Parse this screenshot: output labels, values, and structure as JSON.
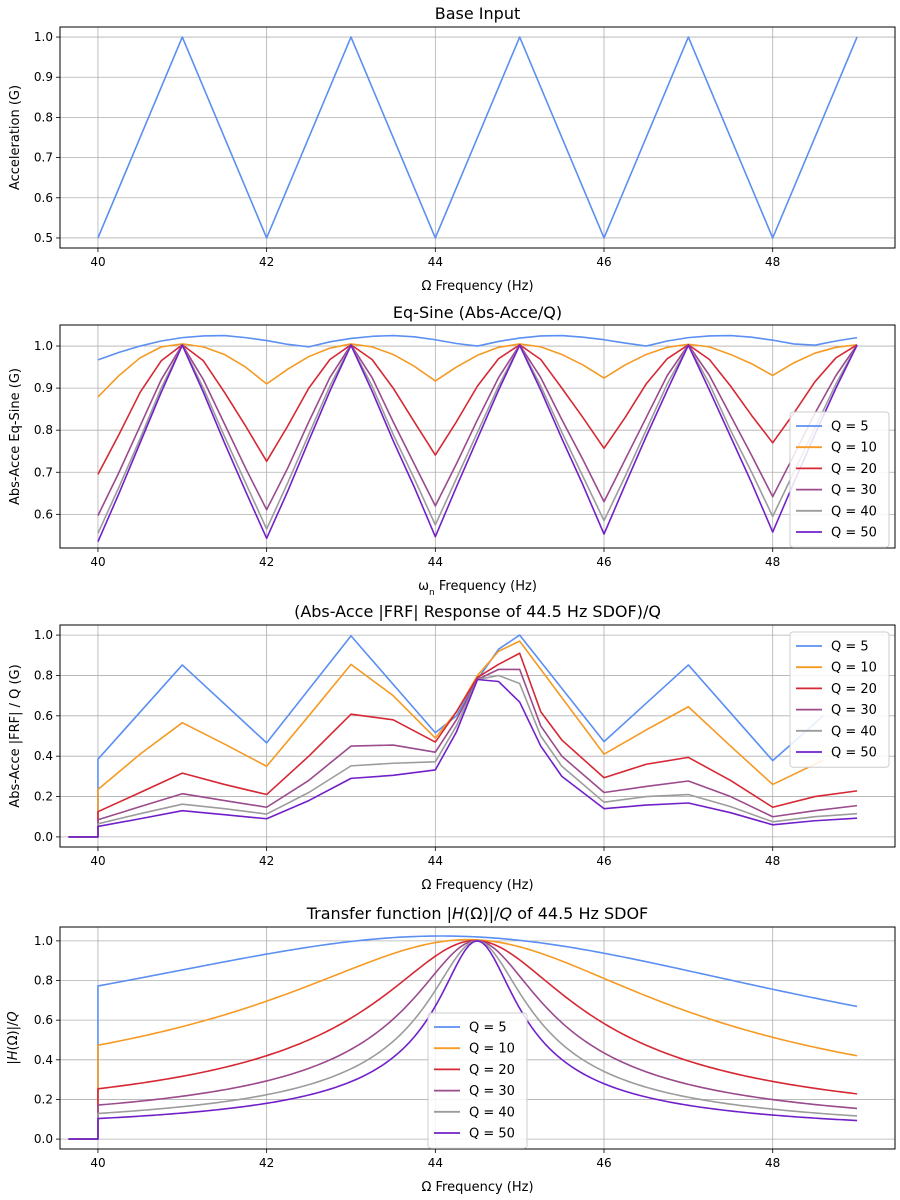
{
  "colors": [
    "#5b8ff2",
    "#f59a23",
    "#d62834",
    "#9b4a8c",
    "#9c9c9c",
    "#7120c9"
  ],
  "chart_data": [
    {
      "type": "line",
      "title": "Base Input",
      "xlabel": "Ω Frequency (Hz)",
      "ylabel": "Acceleration (G)",
      "xlim": [
        39.55,
        49.45
      ],
      "ylim": [
        0.475,
        1.025
      ],
      "xticks": [
        "40",
        "42",
        "44",
        "46",
        "48"
      ],
      "yticks": [
        "0.5",
        "0.6",
        "0.7",
        "0.8",
        "0.9",
        "1.0"
      ],
      "grid": true,
      "legend": null,
      "series": [
        {
          "name": "",
          "x": [
            40,
            41,
            42,
            43,
            44,
            45,
            46,
            47,
            48,
            49
          ],
          "y": [
            0.5,
            1.0,
            0.5,
            1.0,
            0.5,
            1.0,
            0.5,
            1.0,
            0.5,
            1.0
          ]
        }
      ]
    },
    {
      "type": "line",
      "title": "Eq-Sine (Abs-Acce/Q)",
      "xlabel": "ωn Frequency (Hz)",
      "ylabel": "Abs-Acce Eq-Sine (G)",
      "xlim": [
        39.55,
        49.45
      ],
      "ylim": [
        0.52,
        1.05
      ],
      "xticks": [
        "40",
        "42",
        "44",
        "46",
        "48"
      ],
      "yticks": [
        "0.6",
        "0.7",
        "0.8",
        "0.9",
        "1.0"
      ],
      "grid": true,
      "legend": "lower-right",
      "series": [
        {
          "name": "Q = 5",
          "x": [
            40,
            40.25,
            40.5,
            40.75,
            41,
            41.25,
            41.5,
            41.75,
            42,
            42.25,
            42.5,
            42.75,
            43,
            43.25,
            43.5,
            43.75,
            44,
            44.25,
            44.5,
            44.75,
            45,
            45.25,
            45.5,
            45.75,
            46,
            46.25,
            46.5,
            46.75,
            47,
            47.25,
            47.5,
            47.75,
            48,
            48.25,
            48.5,
            48.75,
            49
          ],
          "y": [
            0.967,
            0.985,
            1.0,
            1.012,
            1.02,
            1.024,
            1.025,
            1.02,
            1.013,
            1.004,
            0.998,
            1.01,
            1.018,
            1.023,
            1.025,
            1.022,
            1.015,
            1.006,
            1.0,
            1.011,
            1.019,
            1.024,
            1.025,
            1.021,
            1.015,
            1.007,
            1.0,
            1.012,
            1.02,
            1.024,
            1.025,
            1.021,
            1.014,
            1.005,
            1.002,
            1.012,
            1.02
          ]
        },
        {
          "name": "Q = 10",
          "x": [
            40,
            40.25,
            40.5,
            40.75,
            41,
            41.25,
            41.5,
            41.75,
            42,
            42.25,
            42.5,
            42.75,
            43,
            43.25,
            43.5,
            43.75,
            44,
            44.25,
            44.5,
            44.75,
            45,
            45.25,
            45.5,
            45.75,
            46,
            46.25,
            46.5,
            46.75,
            47,
            47.25,
            47.5,
            47.75,
            48,
            48.25,
            48.5,
            48.75,
            49
          ],
          "y": [
            0.879,
            0.93,
            0.972,
            0.998,
            1.005,
            0.998,
            0.98,
            0.95,
            0.91,
            0.945,
            0.975,
            0.995,
            1.005,
            0.998,
            0.98,
            0.952,
            0.917,
            0.95,
            0.978,
            0.997,
            1.005,
            0.998,
            0.98,
            0.955,
            0.924,
            0.955,
            0.98,
            0.997,
            1.004,
            0.998,
            0.98,
            0.958,
            0.93,
            0.96,
            0.983,
            0.997,
            1.003
          ]
        },
        {
          "name": "Q = 20",
          "x": [
            40,
            40.25,
            40.5,
            40.75,
            41,
            41.25,
            41.5,
            41.75,
            42,
            42.25,
            42.5,
            42.75,
            43,
            43.25,
            43.5,
            43.75,
            44,
            44.25,
            44.5,
            44.75,
            45,
            45.25,
            45.5,
            45.75,
            46,
            46.25,
            46.5,
            46.75,
            47,
            47.25,
            47.5,
            47.75,
            48,
            48.25,
            48.5,
            48.75,
            49
          ],
          "y": [
            0.695,
            0.79,
            0.89,
            0.965,
            1.003,
            0.965,
            0.89,
            0.81,
            0.726,
            0.81,
            0.9,
            0.968,
            1.003,
            0.968,
            0.9,
            0.82,
            0.741,
            0.82,
            0.905,
            0.97,
            1.003,
            0.968,
            0.9,
            0.83,
            0.757,
            0.83,
            0.91,
            0.97,
            1.003,
            0.968,
            0.905,
            0.835,
            0.77,
            0.84,
            0.915,
            0.972,
            1.003
          ]
        },
        {
          "name": "Q = 30",
          "x": [
            40,
            40.25,
            40.5,
            40.75,
            41,
            41.25,
            41.5,
            41.75,
            42,
            42.25,
            42.5,
            42.75,
            43,
            43.25,
            43.5,
            43.75,
            44,
            44.25,
            44.5,
            44.75,
            45,
            45.25,
            45.5,
            45.75,
            46,
            46.25,
            46.5,
            46.75,
            47,
            47.25,
            47.5,
            47.75,
            48,
            48.25,
            48.5,
            48.75,
            49
          ],
          "y": [
            0.597,
            0.7,
            0.81,
            0.92,
            1.003,
            0.92,
            0.815,
            0.71,
            0.611,
            0.71,
            0.82,
            0.925,
            1.003,
            0.925,
            0.82,
            0.72,
            0.62,
            0.72,
            0.825,
            0.925,
            1.003,
            0.925,
            0.825,
            0.73,
            0.63,
            0.73,
            0.83,
            0.93,
            1.003,
            0.93,
            0.835,
            0.74,
            0.642,
            0.74,
            0.84,
            0.93,
            1.003
          ]
        },
        {
          "name": "Q = 40",
          "x": [
            40,
            40.25,
            40.5,
            40.75,
            41,
            41.25,
            41.5,
            41.75,
            42,
            42.25,
            42.5,
            42.75,
            43,
            43.25,
            43.5,
            43.75,
            44,
            44.25,
            44.5,
            44.75,
            45,
            45.25,
            45.5,
            45.75,
            46,
            46.25,
            46.5,
            46.75,
            47,
            47.25,
            47.5,
            47.75,
            48,
            48.25,
            48.5,
            48.75,
            49
          ],
          "y": [
            0.555,
            0.665,
            0.78,
            0.9,
            1.002,
            0.9,
            0.785,
            0.675,
            0.565,
            0.675,
            0.79,
            0.905,
            1.002,
            0.905,
            0.79,
            0.685,
            0.575,
            0.685,
            0.795,
            0.905,
            1.002,
            0.905,
            0.795,
            0.69,
            0.585,
            0.69,
            0.8,
            0.91,
            1.002,
            0.91,
            0.8,
            0.7,
            0.595,
            0.7,
            0.805,
            0.91,
            1.002
          ]
        },
        {
          "name": "Q = 50",
          "x": [
            40,
            40.25,
            40.5,
            40.75,
            41,
            41.25,
            41.5,
            41.75,
            42,
            42.25,
            42.5,
            42.75,
            43,
            43.25,
            43.5,
            43.75,
            44,
            44.25,
            44.5,
            44.75,
            45,
            45.25,
            45.5,
            45.75,
            46,
            46.25,
            46.5,
            46.75,
            47,
            47.25,
            47.5,
            47.75,
            48,
            48.25,
            48.5,
            48.75,
            49
          ],
          "y": [
            0.535,
            0.65,
            0.77,
            0.89,
            1.002,
            0.89,
            0.77,
            0.655,
            0.543,
            0.655,
            0.775,
            0.893,
            1.002,
            0.893,
            0.775,
            0.665,
            0.547,
            0.665,
            0.78,
            0.895,
            1.002,
            0.895,
            0.78,
            0.67,
            0.553,
            0.67,
            0.785,
            0.895,
            1.002,
            0.895,
            0.785,
            0.675,
            0.558,
            0.675,
            0.79,
            0.9,
            1.002
          ]
        }
      ]
    },
    {
      "type": "line",
      "title": "(Abs-Acce |FRF| Response of 44.5 Hz SDOF)/Q",
      "xlabel": "Ω Frequency (Hz)",
      "ylabel": "Abs-Acce |FRF| / Q (G)",
      "xlim": [
        39.55,
        49.45
      ],
      "ylim": [
        -0.05,
        1.05
      ],
      "xticks": [
        "40",
        "42",
        "44",
        "46",
        "48"
      ],
      "yticks": [
        "0.0",
        "0.2",
        "0.4",
        "0.6",
        "0.8",
        "1.0"
      ],
      "grid": true,
      "legend": "upper-right",
      "series": [
        {
          "name": "Q = 5",
          "x": [
            39.65,
            40,
            40,
            41,
            42,
            43,
            44,
            44.25,
            44.5,
            44.75,
            45,
            46,
            47,
            48,
            48.6
          ],
          "y": [
            0,
            0,
            0.385,
            0.852,
            0.466,
            0.996,
            0.516,
            0.6,
            0.78,
            0.93,
            1.0,
            0.472,
            0.852,
            0.378,
            0.6
          ]
        },
        {
          "name": "Q = 10",
          "x": [
            39.65,
            40,
            40,
            40.5,
            41,
            41.5,
            42,
            42.5,
            43,
            43.5,
            44,
            44.25,
            44.5,
            44.75,
            45,
            46,
            46.5,
            47,
            47.5,
            48,
            48.6
          ],
          "y": [
            0,
            0,
            0.235,
            0.41,
            0.566,
            0.46,
            0.35,
            0.6,
            0.855,
            0.7,
            0.49,
            0.62,
            0.8,
            0.92,
            0.97,
            0.41,
            0.53,
            0.645,
            0.45,
            0.26,
            0.38
          ]
        },
        {
          "name": "Q = 20",
          "x": [
            39.65,
            40,
            40,
            40.5,
            41,
            41.5,
            42,
            42.5,
            43,
            43.5,
            44,
            44.25,
            44.5,
            44.75,
            45,
            45.25,
            45.5,
            46,
            46.5,
            47,
            47.5,
            48,
            48.5,
            49
          ],
          "y": [
            0,
            0,
            0.125,
            0.22,
            0.316,
            0.26,
            0.21,
            0.4,
            0.608,
            0.58,
            0.47,
            0.62,
            0.79,
            0.855,
            0.91,
            0.62,
            0.48,
            0.293,
            0.36,
            0.394,
            0.28,
            0.147,
            0.2,
            0.228
          ]
        },
        {
          "name": "Q = 30",
          "x": [
            39.65,
            40,
            40,
            40.5,
            41,
            41.5,
            42,
            42.5,
            43,
            43.5,
            44,
            44.25,
            44.5,
            44.75,
            45,
            45.25,
            45.5,
            46,
            46.5,
            47,
            47.5,
            48,
            48.5,
            49
          ],
          "y": [
            0,
            0,
            0.085,
            0.15,
            0.214,
            0.18,
            0.147,
            0.28,
            0.45,
            0.455,
            0.42,
            0.58,
            0.78,
            0.83,
            0.83,
            0.55,
            0.4,
            0.22,
            0.25,
            0.277,
            0.2,
            0.1,
            0.13,
            0.155
          ]
        },
        {
          "name": "Q = 40",
          "x": [
            39.65,
            40,
            40,
            40.5,
            41,
            41.5,
            42,
            42.5,
            43,
            43.5,
            44,
            44.25,
            44.5,
            44.75,
            45,
            45.25,
            45.5,
            46,
            46.5,
            47,
            47.5,
            48,
            48.5,
            49
          ],
          "y": [
            0,
            0,
            0.065,
            0.115,
            0.162,
            0.14,
            0.113,
            0.22,
            0.352,
            0.365,
            0.372,
            0.55,
            0.78,
            0.8,
            0.76,
            0.5,
            0.35,
            0.172,
            0.2,
            0.21,
            0.15,
            0.075,
            0.1,
            0.115
          ]
        },
        {
          "name": "Q = 50",
          "x": [
            39.65,
            40,
            40,
            40.5,
            41,
            41.5,
            42,
            42.5,
            43,
            43.5,
            44,
            44.25,
            44.5,
            44.75,
            45,
            45.25,
            45.5,
            46,
            46.5,
            47,
            47.5,
            48,
            48.5,
            49
          ],
          "y": [
            0,
            0,
            0.052,
            0.09,
            0.13,
            0.11,
            0.09,
            0.18,
            0.29,
            0.305,
            0.332,
            0.52,
            0.78,
            0.77,
            0.668,
            0.45,
            0.3,
            0.14,
            0.158,
            0.168,
            0.12,
            0.06,
            0.08,
            0.093
          ]
        }
      ]
    },
    {
      "type": "line",
      "title": "Transfer function |H(Ω)|/Q of 44.5 Hz SDOF",
      "xlabel": "Ω Frequency (Hz)",
      "ylabel": "|H(Ω)|/Q",
      "xlim": [
        39.55,
        49.45
      ],
      "ylim": [
        -0.05,
        1.07
      ],
      "xticks": [
        "40",
        "42",
        "44",
        "46",
        "48"
      ],
      "yticks": [
        "0.0",
        "0.2",
        "0.4",
        "0.6",
        "0.8",
        "1.0"
      ],
      "grid": true,
      "legend": "lower-center",
      "sdof": {
        "fn": 44.5,
        "Q": [
          5,
          10,
          20,
          30,
          40,
          50
        ],
        "f_start": 40,
        "f_end": 49,
        "f_min": 39.65
      }
    }
  ],
  "legend_labels": [
    "Q = 5",
    "Q = 10",
    "Q = 20",
    "Q = 30",
    "Q = 40",
    "Q = 50"
  ]
}
